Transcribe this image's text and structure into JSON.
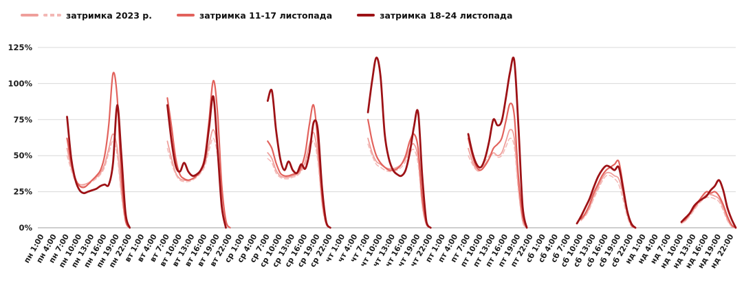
{
  "legend": {
    "items": [
      {
        "id": "y2023",
        "label": "затримка 2023 р.",
        "swatches": [
          {
            "color": "#ef9f9b",
            "dash": false
          },
          {
            "color": "#f3b8b5",
            "dash": true
          }
        ]
      },
      {
        "id": "w1117",
        "label": "затримка 11-17 листопада",
        "swatches": [
          {
            "color": "#e2625c",
            "dash": false
          }
        ]
      },
      {
        "id": "w1824",
        "label": "затримка 18-24 листопада",
        "swatches": [
          {
            "color": "#9d1216",
            "dash": false
          }
        ]
      }
    ]
  },
  "chart_data": {
    "type": "line",
    "title": "",
    "xlabel": "",
    "ylabel": "",
    "unit": "%",
    "ylim": [
      0,
      125
    ],
    "y_tick_values": [
      0,
      25,
      50,
      75,
      100,
      125
    ],
    "y_tick_labels": [
      "0%",
      "25%",
      "50%",
      "75%",
      "100%",
      "125%"
    ],
    "days": [
      "пн",
      "вт",
      "ср",
      "чт",
      "пт",
      "сб",
      "нд"
    ],
    "tick_times": [
      "1:00",
      "4:00",
      "7:00",
      "10:00",
      "13:00",
      "16:00",
      "19:00",
      "22:00"
    ],
    "hours_per_day": 24,
    "grid": true,
    "legend_position": "top-left",
    "series": [
      {
        "name": "затримка 2023 р.",
        "color": "#ef9f9b",
        "dash": null,
        "width": 1.8,
        "values_by_day": [
          [
            null,
            null,
            null,
            null,
            null,
            null,
            null,
            55,
            42,
            33,
            30,
            30,
            31,
            33,
            35,
            38,
            44,
            55,
            65,
            55,
            25,
            5,
            0,
            null
          ],
          [
            null,
            null,
            null,
            null,
            null,
            null,
            null,
            60,
            48,
            38,
            34,
            33,
            33,
            34,
            36,
            39,
            45,
            58,
            68,
            55,
            22,
            4,
            0,
            null
          ],
          [
            null,
            null,
            null,
            null,
            null,
            null,
            null,
            52,
            48,
            40,
            36,
            35,
            35,
            36,
            37,
            40,
            46,
            58,
            66,
            50,
            18,
            3,
            0,
            null
          ],
          [
            null,
            null,
            null,
            null,
            null,
            null,
            null,
            62,
            52,
            46,
            44,
            42,
            41,
            41,
            42,
            44,
            48,
            55,
            58,
            48,
            16,
            2,
            0,
            null
          ],
          [
            null,
            null,
            null,
            null,
            null,
            null,
            null,
            55,
            46,
            40,
            40,
            44,
            48,
            52,
            50,
            52,
            60,
            68,
            62,
            28,
            5,
            0,
            null,
            null
          ],
          [
            null,
            null,
            null,
            null,
            null,
            null,
            null,
            null,
            null,
            null,
            5,
            9,
            14,
            22,
            28,
            34,
            38,
            38,
            36,
            34,
            24,
            10,
            2,
            0
          ],
          [
            null,
            null,
            null,
            null,
            null,
            null,
            null,
            null,
            null,
            null,
            3,
            5,
            9,
            13,
            17,
            20,
            23,
            23,
            22,
            20,
            14,
            6,
            1,
            0
          ]
        ]
      },
      {
        "name": "затримка 2023 р. (пунктир)",
        "color": "#f3b8b5",
        "dash": "6,4",
        "width": 1.5,
        "values_by_day": [
          [
            null,
            null,
            null,
            null,
            null,
            null,
            null,
            50,
            40,
            32,
            29,
            29,
            30,
            32,
            34,
            37,
            42,
            52,
            60,
            50,
            22,
            4,
            0,
            null
          ],
          [
            null,
            null,
            null,
            null,
            null,
            null,
            null,
            55,
            45,
            37,
            33,
            32,
            32,
            33,
            35,
            38,
            43,
            54,
            62,
            50,
            20,
            3,
            0,
            null
          ],
          [
            null,
            null,
            null,
            null,
            null,
            null,
            null,
            48,
            45,
            38,
            35,
            34,
            34,
            35,
            36,
            39,
            44,
            54,
            60,
            46,
            16,
            2,
            0,
            null
          ],
          [
            null,
            null,
            null,
            null,
            null,
            null,
            null,
            58,
            50,
            44,
            42,
            40,
            39,
            39,
            40,
            42,
            46,
            52,
            54,
            44,
            14,
            2,
            0,
            null
          ],
          [
            null,
            null,
            null,
            null,
            null,
            null,
            null,
            50,
            44,
            40,
            42,
            46,
            50,
            52,
            49,
            50,
            56,
            62,
            56,
            25,
            4,
            0,
            null,
            null
          ],
          [
            null,
            null,
            null,
            null,
            null,
            null,
            null,
            null,
            null,
            null,
            5,
            8,
            13,
            20,
            26,
            32,
            36,
            36,
            34,
            30,
            20,
            8,
            1,
            0
          ],
          [
            null,
            null,
            null,
            null,
            null,
            null,
            null,
            null,
            null,
            null,
            3,
            5,
            8,
            12,
            16,
            19,
            21,
            21,
            20,
            18,
            12,
            5,
            1,
            0
          ]
        ]
      },
      {
        "name": "затримка 11-17 листопада",
        "color": "#e2625c",
        "dash": null,
        "width": 2.2,
        "values_by_day": [
          [
            null,
            null,
            null,
            null,
            null,
            null,
            null,
            62,
            45,
            34,
            29,
            28,
            30,
            33,
            36,
            40,
            50,
            72,
            107,
            90,
            35,
            5,
            0,
            null
          ],
          [
            null,
            null,
            null,
            null,
            null,
            null,
            null,
            90,
            70,
            48,
            37,
            34,
            33,
            34,
            36,
            40,
            50,
            75,
            102,
            80,
            30,
            5,
            0,
            null
          ],
          [
            null,
            null,
            null,
            null,
            null,
            null,
            null,
            60,
            55,
            45,
            38,
            36,
            36,
            37,
            38,
            42,
            52,
            72,
            85,
            60,
            22,
            3,
            0,
            null
          ],
          [
            null,
            null,
            null,
            null,
            null,
            null,
            null,
            75,
            60,
            50,
            45,
            42,
            40,
            40,
            41,
            44,
            50,
            60,
            65,
            55,
            20,
            3,
            0,
            null
          ],
          [
            null,
            null,
            null,
            null,
            null,
            null,
            null,
            62,
            50,
            42,
            40,
            43,
            48,
            55,
            58,
            62,
            74,
            86,
            78,
            35,
            8,
            0,
            null,
            null
          ],
          [
            null,
            null,
            null,
            null,
            null,
            null,
            null,
            null,
            null,
            null,
            6,
            10,
            16,
            24,
            30,
            36,
            40,
            42,
            44,
            46,
            30,
            12,
            2,
            0
          ],
          [
            null,
            null,
            null,
            null,
            null,
            null,
            null,
            null,
            null,
            null,
            4,
            6,
            10,
            14,
            18,
            22,
            25,
            24,
            25,
            22,
            16,
            8,
            2,
            0
          ]
        ]
      },
      {
        "name": "затримка 18-24 листопада",
        "color": "#9d1216",
        "dash": null,
        "width": 2.8,
        "values_by_day": [
          [
            null,
            null,
            null,
            null,
            null,
            null,
            null,
            77,
            48,
            33,
            26,
            24,
            25,
            26,
            27,
            29,
            30,
            30,
            45,
            85,
            50,
            10,
            0,
            null
          ],
          [
            null,
            null,
            null,
            null,
            null,
            null,
            null,
            85,
            60,
            43,
            39,
            45,
            39,
            36,
            37,
            40,
            48,
            70,
            91,
            55,
            15,
            0,
            null,
            null
          ],
          [
            null,
            null,
            null,
            null,
            null,
            null,
            null,
            88,
            95,
            68,
            48,
            40,
            46,
            40,
            38,
            44,
            41,
            52,
            73,
            68,
            28,
            4,
            0,
            null
          ],
          [
            null,
            null,
            null,
            null,
            null,
            null,
            null,
            80,
            102,
            118,
            105,
            65,
            48,
            40,
            37,
            36,
            40,
            52,
            70,
            80,
            35,
            4,
            0,
            null
          ],
          [
            null,
            null,
            null,
            null,
            null,
            null,
            null,
            65,
            52,
            44,
            42,
            48,
            60,
            75,
            71,
            74,
            90,
            108,
            116,
            70,
            15,
            0,
            null,
            null
          ],
          [
            null,
            null,
            null,
            null,
            null,
            null,
            null,
            null,
            null,
            3,
            8,
            14,
            20,
            28,
            35,
            40,
            43,
            42,
            40,
            42,
            28,
            12,
            3,
            0
          ],
          [
            null,
            null,
            null,
            null,
            null,
            null,
            null,
            null,
            null,
            null,
            4,
            7,
            10,
            15,
            18,
            20,
            22,
            26,
            29,
            33,
            26,
            14,
            6,
            0
          ]
        ]
      }
    ]
  }
}
